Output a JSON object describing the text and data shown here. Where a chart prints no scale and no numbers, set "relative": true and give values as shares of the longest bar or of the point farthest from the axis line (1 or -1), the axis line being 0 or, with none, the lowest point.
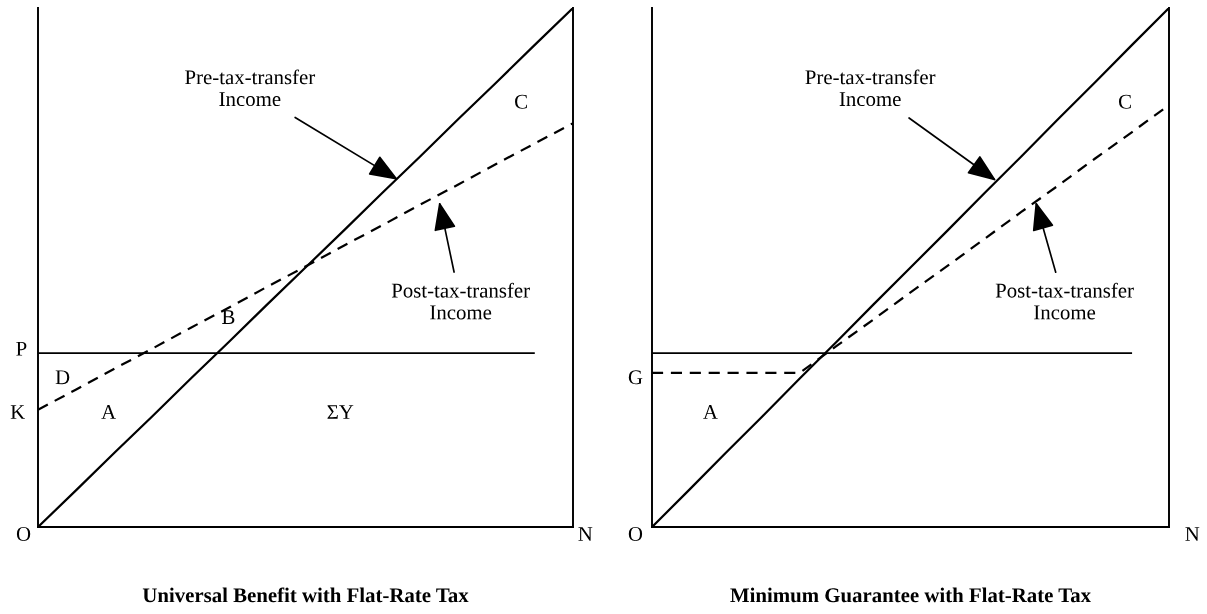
{
  "chart_data": [
    {
      "type": "line",
      "relative": true,
      "title": "Universal Benefit with Flat-Rate Tax",
      "categories": [
        null,
        null,
        null,
        null,
        null,
        null,
        null,
        null,
        null,
        null,
        null,
        null,
        null,
        null,
        null
      ],
      "series": [
        {
          "color": "#000000",
          "line_style": "solid",
          "values": [
            0,
            0.071,
            0.143,
            0.214,
            0.286,
            0.357,
            0.429,
            0.5,
            0.571,
            0.643,
            0.714,
            0.786,
            0.857,
            0.929,
            1
          ]
        },
        {
          "color": "#000000",
          "line_style": "dashed",
          "values": [
            0.226,
            0.265,
            0.305,
            0.344,
            0.384,
            0.423,
            0.463,
            0.502,
            0.542,
            0.581,
            0.621,
            0.66,
            0.7,
            0.739,
            0.778
          ]
        },
        {
          "color": "#000000",
          "line_style": "solid",
          "values": [
            0.335,
            0.335,
            0.335,
            0.335,
            0.335,
            0.335,
            0.335,
            0.335,
            0.335,
            0.335,
            0.335,
            0.335,
            0.335,
            0.335,
            null
          ]
        }
      ],
      "annotations": [
        "Pre-tax-transfer\nIncome",
        "Post-tax-transfer\nIncome",
        "C",
        "B",
        "D",
        "A",
        "ΣY",
        "P",
        "K",
        "O",
        "N"
      ]
    },
    {
      "type": "line",
      "relative": true,
      "title": "Minimum Guarantee with Flat-Rate Tax",
      "categories": [
        null,
        null,
        null,
        null,
        null,
        null,
        null,
        null,
        null,
        null,
        null,
        null,
        null,
        null,
        null
      ],
      "series": [
        {
          "color": "#000000",
          "line_style": "solid",
          "values": [
            0,
            0.071,
            0.143,
            0.214,
            0.286,
            0.357,
            0.429,
            0.5,
            0.571,
            0.643,
            0.714,
            0.786,
            0.857,
            0.929,
            1
          ]
        },
        {
          "color": "#000000",
          "line_style": "dashed",
          "values": [
            0.297,
            0.297,
            0.297,
            0.297,
            0.297,
            0.349,
            0.4,
            0.452,
            0.503,
            0.555,
            0.607,
            0.658,
            0.71,
            0.761,
            0.813
          ]
        },
        {
          "color": "#000000",
          "line_style": "solid",
          "values": [
            0.335,
            0.335,
            0.335,
            0.335,
            0.335,
            0.335,
            0.335,
            0.335,
            0.335,
            0.335,
            0.335,
            0.335,
            0.335,
            0.335,
            null
          ]
        }
      ],
      "annotations": [
        "Pre-tax-transfer\nIncome",
        "Post-tax-transfer\nIncome",
        "C",
        "A",
        "G",
        "O",
        "N"
      ]
    }
  ]
}
